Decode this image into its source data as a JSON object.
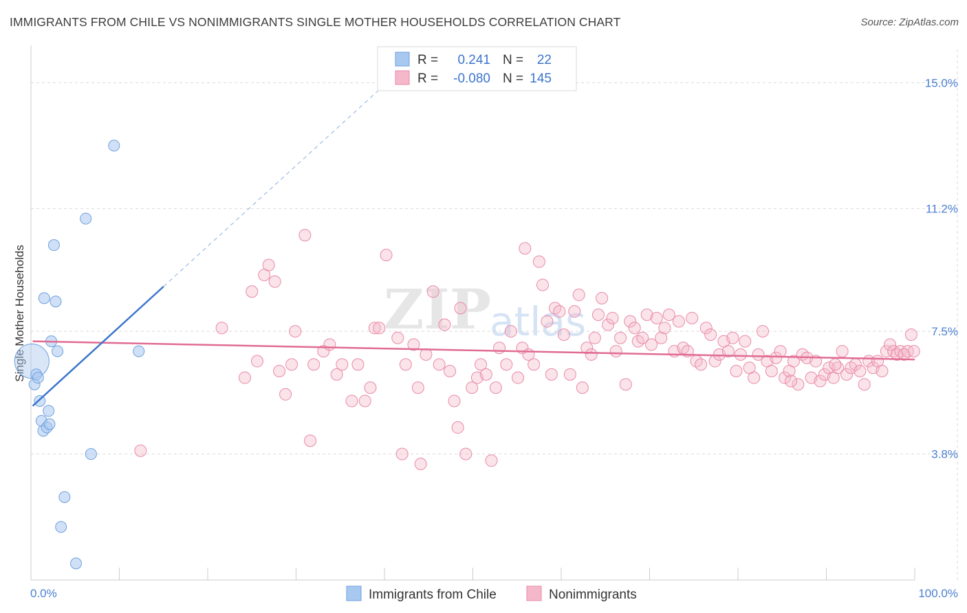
{
  "header": {
    "title": "IMMIGRANTS FROM CHILE VS NONIMMIGRANTS SINGLE MOTHER HOUSEHOLDS CORRELATION CHART",
    "source": "Source: ZipAtlas.com"
  },
  "watermark": {
    "zip": "ZIP",
    "atlas": "atlas"
  },
  "legend": {
    "r_label": "R =",
    "n_label": "N =",
    "series": [
      {
        "name": "Immigrants from Chile",
        "r": "0.241",
        "n": "22"
      },
      {
        "name": "Nonimmigrants",
        "r": "-0.080",
        "n": "145"
      }
    ]
  },
  "colors": {
    "chile_fill": "#a9c8f0",
    "chile_stroke": "#6d9fdc",
    "chile_line": "#3a74cc",
    "non_fill": "#f5b8cb",
    "non_stroke": "#e88aa8",
    "non_line": "#e06b93",
    "tick_text": "#4a7fd0",
    "grid": "#d9d9d9"
  },
  "chart_data": {
    "type": "scatter",
    "title": "IMMIGRANTS FROM CHILE VS NONIMMIGRANTS SINGLE MOTHER HOUSEHOLDS CORRELATION CHART",
    "xlabel": "",
    "ylabel": "Single Mother Households",
    "xlim": [
      0,
      100
    ],
    "ylim": [
      0,
      16
    ],
    "y_ticks": [
      3.8,
      7.5,
      11.2,
      15.0
    ],
    "y_tick_labels": [
      "3.8%",
      "7.5%",
      "11.2%",
      "15.0%"
    ],
    "x_tick_labels": [
      "0.0%",
      "100.0%"
    ],
    "grid": true,
    "series": [
      {
        "name": "Immigrants from Chile",
        "r": 0.241,
        "n": 22,
        "trend": {
          "x0": 0.2,
          "y0": 5.25,
          "x1": 15.0,
          "y1": 8.85,
          "dash_to_x": 39.6
        },
        "points": [
          {
            "x": 0.1,
            "y": 6.6,
            "big": true
          },
          {
            "x": 0.4,
            "y": 5.9
          },
          {
            "x": 0.6,
            "y": 6.2
          },
          {
            "x": 0.8,
            "y": 6.1
          },
          {
            "x": 1.0,
            "y": 5.4
          },
          {
            "x": 1.2,
            "y": 4.8
          },
          {
            "x": 1.4,
            "y": 4.5
          },
          {
            "x": 1.5,
            "y": 8.5
          },
          {
            "x": 1.8,
            "y": 4.6
          },
          {
            "x": 2.0,
            "y": 5.1
          },
          {
            "x": 2.1,
            "y": 4.7
          },
          {
            "x": 2.3,
            "y": 7.2
          },
          {
            "x": 2.6,
            "y": 10.1
          },
          {
            "x": 2.8,
            "y": 8.4
          },
          {
            "x": 3.0,
            "y": 6.9
          },
          {
            "x": 3.4,
            "y": 1.6
          },
          {
            "x": 3.8,
            "y": 2.5
          },
          {
            "x": 6.2,
            "y": 10.9
          },
          {
            "x": 6.8,
            "y": 3.8
          },
          {
            "x": 5.1,
            "y": 0.5
          },
          {
            "x": 9.4,
            "y": 13.1
          },
          {
            "x": 12.2,
            "y": 6.9
          }
        ]
      },
      {
        "name": "Nonimmigrants",
        "r": -0.08,
        "n": 145,
        "trend": {
          "x0": 0.2,
          "y0": 7.2,
          "x1": 100.0,
          "y1": 6.65
        },
        "points": [
          {
            "x": 12.4,
            "y": 3.9
          },
          {
            "x": 21.6,
            "y": 7.6
          },
          {
            "x": 24.2,
            "y": 6.1
          },
          {
            "x": 25.0,
            "y": 8.7
          },
          {
            "x": 25.6,
            "y": 6.6
          },
          {
            "x": 26.4,
            "y": 9.2
          },
          {
            "x": 26.9,
            "y": 9.5
          },
          {
            "x": 27.6,
            "y": 9.0
          },
          {
            "x": 28.1,
            "y": 6.3
          },
          {
            "x": 28.8,
            "y": 5.6
          },
          {
            "x": 29.5,
            "y": 6.5
          },
          {
            "x": 29.9,
            "y": 7.5
          },
          {
            "x": 31.0,
            "y": 10.4
          },
          {
            "x": 31.6,
            "y": 4.2
          },
          {
            "x": 32.0,
            "y": 6.5
          },
          {
            "x": 33.1,
            "y": 6.9
          },
          {
            "x": 33.8,
            "y": 7.1
          },
          {
            "x": 34.6,
            "y": 6.2
          },
          {
            "x": 35.2,
            "y": 6.5
          },
          {
            "x": 36.3,
            "y": 5.4
          },
          {
            "x": 37.0,
            "y": 6.5
          },
          {
            "x": 37.8,
            "y": 5.4
          },
          {
            "x": 38.4,
            "y": 5.8
          },
          {
            "x": 38.9,
            "y": 7.6
          },
          {
            "x": 39.4,
            "y": 7.6
          },
          {
            "x": 40.2,
            "y": 9.8
          },
          {
            "x": 41.5,
            "y": 7.3
          },
          {
            "x": 42.0,
            "y": 3.8
          },
          {
            "x": 42.4,
            "y": 6.5
          },
          {
            "x": 43.3,
            "y": 7.1
          },
          {
            "x": 43.8,
            "y": 5.8
          },
          {
            "x": 44.1,
            "y": 3.5
          },
          {
            "x": 44.7,
            "y": 6.8
          },
          {
            "x": 45.5,
            "y": 8.7
          },
          {
            "x": 46.2,
            "y": 6.5
          },
          {
            "x": 46.8,
            "y": 7.7
          },
          {
            "x": 47.4,
            "y": 6.3
          },
          {
            "x": 47.9,
            "y": 5.4
          },
          {
            "x": 48.3,
            "y": 4.6
          },
          {
            "x": 48.6,
            "y": 8.2
          },
          {
            "x": 49.2,
            "y": 3.8
          },
          {
            "x": 49.9,
            "y": 5.8
          },
          {
            "x": 50.5,
            "y": 6.1
          },
          {
            "x": 50.9,
            "y": 6.5
          },
          {
            "x": 51.5,
            "y": 6.2
          },
          {
            "x": 52.1,
            "y": 3.6
          },
          {
            "x": 52.6,
            "y": 5.8
          },
          {
            "x": 53.0,
            "y": 7.0
          },
          {
            "x": 53.8,
            "y": 6.5
          },
          {
            "x": 54.3,
            "y": 7.5
          },
          {
            "x": 55.1,
            "y": 6.1
          },
          {
            "x": 55.6,
            "y": 7.0
          },
          {
            "x": 55.9,
            "y": 10.0
          },
          {
            "x": 56.3,
            "y": 6.8
          },
          {
            "x": 56.9,
            "y": 6.5
          },
          {
            "x": 57.5,
            "y": 9.6
          },
          {
            "x": 57.9,
            "y": 8.9
          },
          {
            "x": 58.4,
            "y": 7.8
          },
          {
            "x": 58.9,
            "y": 6.2
          },
          {
            "x": 59.3,
            "y": 8.2
          },
          {
            "x": 59.8,
            "y": 8.1
          },
          {
            "x": 60.3,
            "y": 7.4
          },
          {
            "x": 61.0,
            "y": 6.2
          },
          {
            "x": 61.5,
            "y": 8.1
          },
          {
            "x": 62.0,
            "y": 8.6
          },
          {
            "x": 62.4,
            "y": 5.8
          },
          {
            "x": 62.9,
            "y": 7.0
          },
          {
            "x": 63.4,
            "y": 6.8
          },
          {
            "x": 63.8,
            "y": 7.3
          },
          {
            "x": 64.2,
            "y": 8.0
          },
          {
            "x": 64.6,
            "y": 8.5
          },
          {
            "x": 65.3,
            "y": 7.7
          },
          {
            "x": 65.8,
            "y": 7.9
          },
          {
            "x": 66.2,
            "y": 6.9
          },
          {
            "x": 66.7,
            "y": 7.3
          },
          {
            "x": 67.3,
            "y": 5.9
          },
          {
            "x": 67.8,
            "y": 7.8
          },
          {
            "x": 68.3,
            "y": 7.6
          },
          {
            "x": 68.7,
            "y": 7.2
          },
          {
            "x": 69.2,
            "y": 7.3
          },
          {
            "x": 69.7,
            "y": 8.0
          },
          {
            "x": 70.2,
            "y": 7.1
          },
          {
            "x": 70.8,
            "y": 7.9
          },
          {
            "x": 71.3,
            "y": 7.3
          },
          {
            "x": 71.7,
            "y": 7.6
          },
          {
            "x": 72.2,
            "y": 8.0
          },
          {
            "x": 72.8,
            "y": 6.9
          },
          {
            "x": 73.3,
            "y": 7.8
          },
          {
            "x": 73.8,
            "y": 7.0
          },
          {
            "x": 74.3,
            "y": 6.9
          },
          {
            "x": 74.8,
            "y": 7.9
          },
          {
            "x": 75.3,
            "y": 6.6
          },
          {
            "x": 75.8,
            "y": 6.5
          },
          {
            "x": 76.4,
            "y": 7.6
          },
          {
            "x": 76.9,
            "y": 7.4
          },
          {
            "x": 77.4,
            "y": 6.6
          },
          {
            "x": 77.9,
            "y": 6.8
          },
          {
            "x": 78.4,
            "y": 7.2
          },
          {
            "x": 78.9,
            "y": 6.9
          },
          {
            "x": 79.4,
            "y": 7.3
          },
          {
            "x": 79.8,
            "y": 6.3
          },
          {
            "x": 80.3,
            "y": 6.8
          },
          {
            "x": 80.8,
            "y": 7.2
          },
          {
            "x": 81.3,
            "y": 6.4
          },
          {
            "x": 81.8,
            "y": 6.1
          },
          {
            "x": 82.3,
            "y": 6.8
          },
          {
            "x": 82.8,
            "y": 7.5
          },
          {
            "x": 83.3,
            "y": 6.6
          },
          {
            "x": 83.8,
            "y": 6.3
          },
          {
            "x": 84.3,
            "y": 6.7
          },
          {
            "x": 84.8,
            "y": 6.9
          },
          {
            "x": 85.3,
            "y": 6.1
          },
          {
            "x": 85.8,
            "y": 6.3
          },
          {
            "x": 86.3,
            "y": 6.6
          },
          {
            "x": 86.8,
            "y": 5.9
          },
          {
            "x": 87.3,
            "y": 6.8
          },
          {
            "x": 87.8,
            "y": 6.7
          },
          {
            "x": 88.3,
            "y": 6.1
          },
          {
            "x": 88.8,
            "y": 6.6
          },
          {
            "x": 89.3,
            "y": 6.0
          },
          {
            "x": 89.8,
            "y": 6.2
          },
          {
            "x": 90.3,
            "y": 6.4
          },
          {
            "x": 90.8,
            "y": 6.1
          },
          {
            "x": 91.3,
            "y": 6.4
          },
          {
            "x": 91.8,
            "y": 6.9
          },
          {
            "x": 92.3,
            "y": 6.2
          },
          {
            "x": 92.8,
            "y": 6.4
          },
          {
            "x": 93.3,
            "y": 6.5
          },
          {
            "x": 93.8,
            "y": 6.3
          },
          {
            "x": 94.3,
            "y": 5.9
          },
          {
            "x": 94.8,
            "y": 6.6
          },
          {
            "x": 95.3,
            "y": 6.4
          },
          {
            "x": 95.8,
            "y": 6.6
          },
          {
            "x": 96.3,
            "y": 6.3
          },
          {
            "x": 96.8,
            "y": 6.9
          },
          {
            "x": 97.2,
            "y": 7.1
          },
          {
            "x": 97.6,
            "y": 6.9
          },
          {
            "x": 98.0,
            "y": 6.8
          },
          {
            "x": 98.4,
            "y": 6.9
          },
          {
            "x": 98.8,
            "y": 6.8
          },
          {
            "x": 99.2,
            "y": 6.9
          },
          {
            "x": 99.6,
            "y": 7.4
          },
          {
            "x": 99.9,
            "y": 6.9
          },
          {
            "x": 86.0,
            "y": 6.0
          },
          {
            "x": 91.0,
            "y": 6.5
          }
        ]
      }
    ]
  }
}
